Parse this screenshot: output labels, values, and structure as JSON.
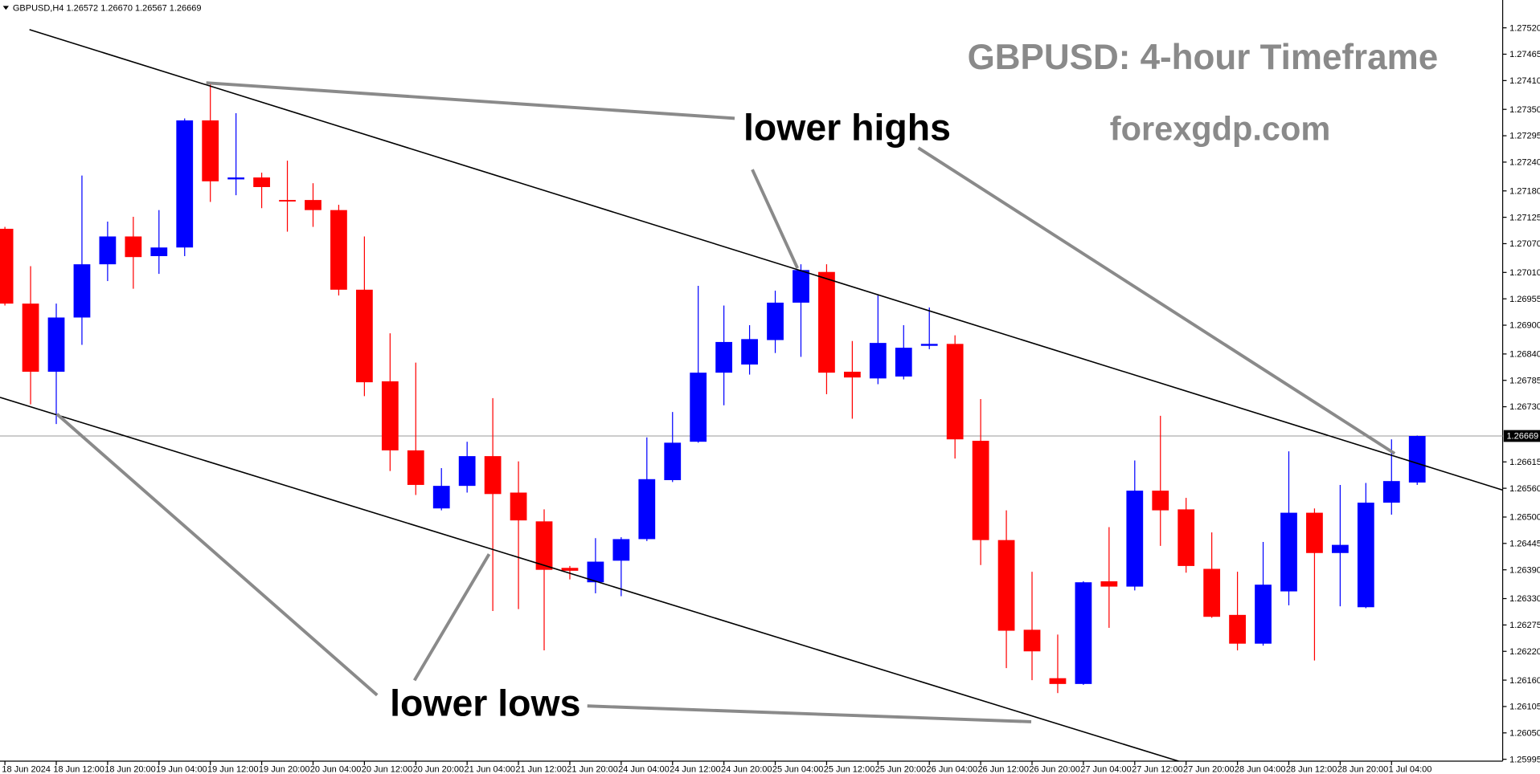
{
  "chart_data": {
    "type": "candlestick",
    "header": "GBPUSD,H4  1.26572 1.26670 1.26567 1.26669",
    "title": "GBPUSD: 4-hour Timeframe",
    "subtitle": "forexgdp.com",
    "annotations": [
      "lower highs",
      "lower lows"
    ],
    "up_color": "#0000ff",
    "down_color": "#ff0000",
    "categories": [
      "18 Jun 2024",
      null,
      "18 Jun 12:00",
      null,
      "18 Jun 20:00",
      null,
      "19 Jun 04:00",
      null,
      "19 Jun 12:00",
      null,
      "19 Jun 20:00",
      null,
      "20 Jun 04:00",
      null,
      "20 Jun 12:00",
      null,
      "20 Jun 20:00",
      null,
      "21 Jun 04:00",
      null,
      "21 Jun 12:00",
      null,
      "21 Jun 20:00",
      null,
      "24 Jun 04:00",
      null,
      "24 Jun 12:00",
      null,
      "24 Jun 20:00",
      null,
      "25 Jun 04:00",
      null,
      "25 Jun 12:00",
      null,
      "25 Jun 20:00",
      null,
      "26 Jun 04:00",
      null,
      "26 Jun 12:00",
      null,
      "26 Jun 20:00",
      null,
      "27 Jun 04:00",
      null,
      "27 Jun 12:00",
      null,
      "27 Jun 20:00",
      null,
      "28 Jun 04:00",
      null,
      "28 Jun 12:00",
      null,
      "28 Jun 20:00",
      null,
      "1 Jul 04:00",
      null
    ],
    "open": [
      1.27101,
      1.26945,
      1.26803,
      1.26916,
      1.27027,
      1.27085,
      1.27044,
      1.27062,
      1.27327,
      1.27204,
      1.27208,
      1.27161,
      1.27161,
      1.2714,
      1.26974,
      1.26783,
      1.26639,
      1.26518,
      1.26565,
      1.26627,
      1.26551,
      1.26491,
      1.26394,
      1.26364,
      1.26409,
      1.26454,
      1.26577,
      1.26657,
      1.26801,
      1.26818,
      1.26869,
      1.26947,
      1.27011,
      1.26803,
      1.26789,
      1.26793,
      1.26857,
      1.26861,
      1.26659,
      1.26452,
      1.26265,
      1.26164,
      1.26152,
      1.26366,
      1.26355,
      1.26555,
      1.26516,
      1.26392,
      1.26296,
      1.26236,
      1.26345,
      1.26509,
      1.26425,
      1.26312,
      1.2653,
      1.26572
    ],
    "high": [
      1.27105,
      1.27023,
      1.26945,
      1.27212,
      1.27116,
      1.27126,
      1.2714,
      1.27331,
      1.27403,
      1.27342,
      1.27218,
      1.27243,
      1.27196,
      1.27151,
      1.27085,
      1.26883,
      1.26822,
      1.26602,
      1.26657,
      1.26748,
      1.26616,
      1.26516,
      1.26398,
      1.26456,
      1.26458,
      1.26666,
      1.26719,
      1.26982,
      1.26941,
      1.269,
      1.26972,
      1.27027,
      1.27027,
      1.26867,
      1.26962,
      1.269,
      1.26937,
      1.26879,
      1.26746,
      1.26514,
      1.26386,
      1.26255,
      1.26366,
      1.26479,
      1.26618,
      1.26711,
      1.2654,
      1.26468,
      1.26386,
      1.26448,
      1.26637,
      1.26518,
      1.26567,
      1.26571,
      1.26662,
      1.2667
    ],
    "low": [
      1.26941,
      1.26735,
      1.26694,
      1.26859,
      1.26992,
      1.26976,
      1.27007,
      1.27044,
      1.27157,
      1.27171,
      1.27144,
      1.27095,
      1.27105,
      1.26962,
      1.26752,
      1.26596,
      1.26546,
      1.26514,
      1.26551,
      1.26304,
      1.26308,
      1.26222,
      1.2637,
      1.26341,
      1.26335,
      1.2645,
      1.26573,
      1.26655,
      1.26733,
      1.26797,
      1.26842,
      1.26834,
      1.26756,
      1.26705,
      1.26777,
      1.26787,
      1.2685,
      1.26622,
      1.264,
      1.26185,
      1.2616,
      1.26133,
      1.2615,
      1.26269,
      1.26347,
      1.2644,
      1.26384,
      1.2629,
      1.26222,
      1.26232,
      1.26316,
      1.26201,
      1.26314,
      1.2631,
      1.26505,
      1.26567
    ],
    "close": [
      1.26945,
      1.26803,
      1.26916,
      1.27027,
      1.27085,
      1.27042,
      1.27062,
      1.27327,
      1.272,
      1.27208,
      1.27188,
      1.27159,
      1.2714,
      1.26974,
      1.26781,
      1.26639,
      1.26567,
      1.26565,
      1.26627,
      1.26548,
      1.26493,
      1.2639,
      1.26388,
      1.26407,
      1.26454,
      1.26579,
      1.26655,
      1.26801,
      1.26865,
      1.26871,
      1.26947,
      1.27015,
      1.26801,
      1.26791,
      1.26863,
      1.26853,
      1.26861,
      1.26662,
      1.26452,
      1.26263,
      1.2622,
      1.26152,
      1.26364,
      1.26355,
      1.26555,
      1.26514,
      1.26398,
      1.26292,
      1.26236,
      1.26359,
      1.26509,
      1.26425,
      1.26442,
      1.2653,
      1.26575,
      1.26669
    ],
    "ylim": [
      1.25991,
      1.27578
    ],
    "yticks": [
      {
        "value": 1.2752,
        "label": "1.27520"
      },
      1.27465,
      {
        "value": 1.2741,
        "label": "1.27410"
      },
      {
        "value": 1.2735,
        "label": "1.27350"
      },
      1.27295,
      {
        "value": 1.2724,
        "label": "1.27240"
      },
      {
        "value": 1.2718,
        "label": "1.27180"
      },
      1.27125,
      {
        "value": 1.2707,
        "label": "1.27070"
      },
      {
        "value": 1.2701,
        "label": "1.27010"
      },
      1.26955,
      {
        "value": 1.269,
        "label": "1.26900"
      },
      {
        "value": 1.2684,
        "label": "1.26840"
      },
      1.26785,
      {
        "value": 1.2673,
        "label": "1.26730"
      },
      1.26615,
      {
        "value": 1.2656,
        "label": "1.26560"
      },
      {
        "value": 1.265,
        "label": "1.26500"
      },
      1.26445,
      {
        "value": 1.2639,
        "label": "1.26390"
      },
      {
        "value": 1.2633,
        "label": "1.26330"
      },
      1.26275,
      {
        "value": 1.2622,
        "label": "1.26220"
      },
      {
        "value": 1.2616,
        "label": "1.26160"
      },
      1.26105,
      {
        "value": 1.2605,
        "label": "1.26050"
      },
      1.25995
    ],
    "current_price": 1.26669
  }
}
